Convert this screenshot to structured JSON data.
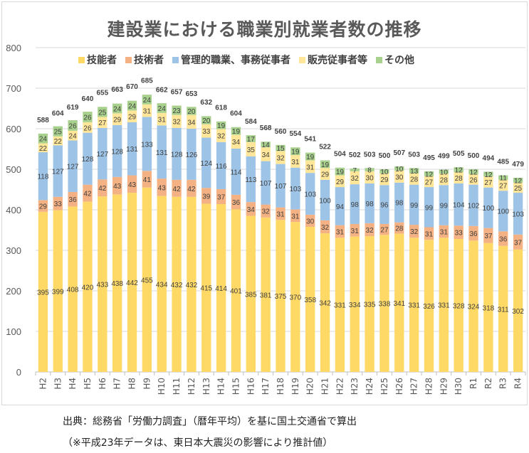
{
  "chart_data": {
    "type": "bar",
    "stacked": true,
    "title": "建設業における職業別就業者数の推移",
    "xlabel": "",
    "ylabel": "",
    "ylim": [
      0,
      800
    ],
    "yticks": [
      0,
      100,
      200,
      300,
      400,
      500,
      600,
      700,
      800
    ],
    "grid": true,
    "legend_position": "top",
    "categories": [
      "H2",
      "H3",
      "H4",
      "H5",
      "H6",
      "H7",
      "H8",
      "H9",
      "H10",
      "H11",
      "H12",
      "H13",
      "H14",
      "H15",
      "H16",
      "H17",
      "H18",
      "H19",
      "H20",
      "H21",
      "H22",
      "H23",
      "H24",
      "H25",
      "H26",
      "H27",
      "H28",
      "H29",
      "H30",
      "R1",
      "R2",
      "R3",
      "R4"
    ],
    "series": [
      {
        "name": "技能者",
        "color": "#FFD966",
        "values": [
          395,
          399,
          408,
          420,
          433,
          438,
          442,
          455,
          434,
          432,
          432,
          415,
          414,
          401,
          385,
          381,
          375,
          370,
          358,
          342,
          331,
          334,
          335,
          338,
          341,
          331,
          326,
          331,
          328,
          324,
          318,
          311,
          302
        ]
      },
      {
        "name": "技術者",
        "color": "#F4B183",
        "values": [
          29,
          33,
          36,
          42,
          42,
          43,
          43,
          41,
          43,
          42,
          42,
          39,
          37,
          36,
          34,
          32,
          31,
          31,
          30,
          32,
          31,
          31,
          32,
          27,
          28,
          32,
          31,
          31,
          33,
          36,
          37,
          36,
          37
        ]
      },
      {
        "name": "管理的職業、事務従事者",
        "color": "#9DC3E6",
        "values": [
          118,
          127,
          127,
          128,
          127,
          128,
          131,
          133,
          131,
          128,
          126,
          124,
          116,
          114,
          113,
          107,
          107,
          103,
          103,
          100,
          94,
          98,
          98,
          96,
          98,
          99,
          99,
          99,
          104,
          102,
          100,
          100,
          103
        ]
      },
      {
        "name": "販売従事者等",
        "color": "#FFE699",
        "values": [
          22,
          22,
          24,
          26,
          27,
          29,
          29,
          31,
          31,
          32,
          34,
          33,
          32,
          34,
          35,
          34,
          32,
          31,
          31,
          29,
          29,
          32,
          30,
          29,
          30,
          28,
          27,
          28,
          28,
          26,
          27,
          27,
          25
        ]
      },
      {
        "name": "その他",
        "color": "#A9D18E",
        "values": [
          24,
          25,
          26,
          26,
          25,
          24,
          24,
          24,
          24,
          23,
          20,
          20,
          19,
          19,
          17,
          14,
          15,
          19,
          19,
          19,
          19,
          7,
          8,
          10,
          10,
          13,
          12,
          10,
          12,
          12,
          12,
          11,
          12
        ]
      }
    ],
    "totals": [
      588,
      604,
      619,
      640,
      655,
      663,
      670,
      685,
      662,
      657,
      653,
      632,
      618,
      604,
      584,
      568,
      560,
      554,
      541,
      522,
      504,
      502,
      503,
      500,
      507,
      503,
      495,
      499,
      505,
      500,
      494,
      485,
      479
    ]
  },
  "footnotes": {
    "source": "出典：総務省「労働力調査」（暦年平均）を基に国土交通省で算出",
    "note": "（※平成23年データは、東日本大震災の影響により推計値）"
  }
}
